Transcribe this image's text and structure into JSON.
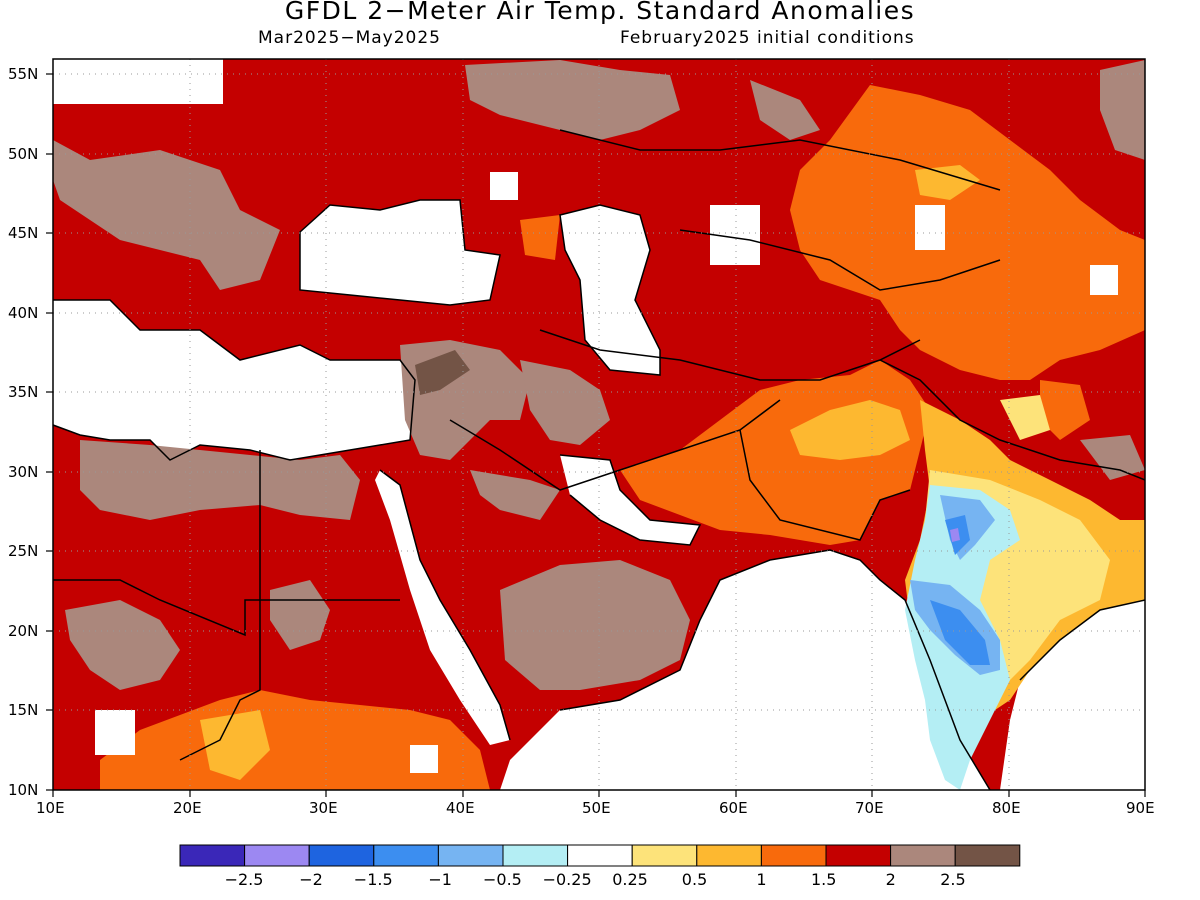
{
  "title": "GFDL 2−Meter Air Temp. Standard Anomalies",
  "period": "Mar2025−May2025",
  "init": "February2025 initial conditions",
  "lat_ticks": [
    "55N",
    "50N",
    "45N",
    "40N",
    "35N",
    "30N",
    "25N",
    "20N",
    "15N",
    "10N"
  ],
  "lon_ticks": [
    "10E",
    "20E",
    "30E",
    "40E",
    "50E",
    "60E",
    "70E",
    "80E",
    "90E"
  ],
  "colorbar": {
    "colors": [
      "#3a27b8",
      "#9c88f2",
      "#1e64e0",
      "#3c8ef0",
      "#76b4f2",
      "#b4eef4",
      "#ffffff",
      "#fde37a",
      "#fdb830",
      "#f86a0c",
      "#c40000",
      "#ab877c",
      "#735446"
    ],
    "labels": [
      "−2.5",
      "−2",
      "−1.5",
      "−1",
      "−0.5",
      "−0.25",
      "0.25",
      "0.5",
      "1",
      "1.5",
      "2",
      "2.5"
    ]
  },
  "colors": {
    "dark_red": "#c40000",
    "brown": "#ab877c",
    "dark_brown": "#735446",
    "orange": "#f86a0c",
    "light_orange": "#fdb830",
    "yellow": "#fde37a",
    "blue": "#3c8ef0",
    "light_blue": "#76b4f2",
    "cyan": "#b4eef4"
  }
}
